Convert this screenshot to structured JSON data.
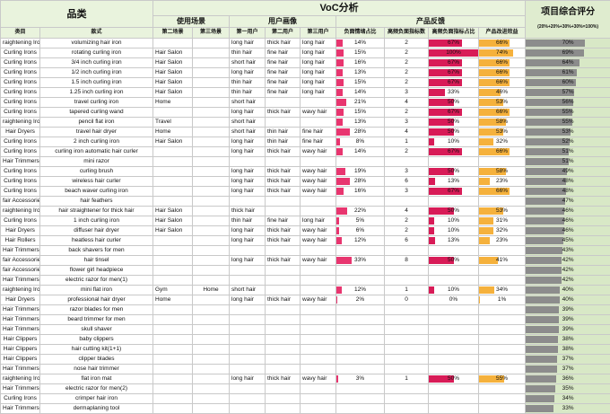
{
  "header": {
    "category": "品类",
    "voc": "VoC分析",
    "overall": "项目综合评分",
    "overall_sub": "(20%+20%+30%+30%=100%)",
    "usage": "使用场景",
    "persona": "用户画像",
    "feedback": "产品反馈",
    "col_category": "类目",
    "col_style": "款式",
    "col_scene2": "第二场景",
    "col_scene3": "第三场景",
    "col_user1": "第一用户",
    "col_user2": "第二用户",
    "col_user3": "第三用户",
    "col_neg": "负面情绪占比",
    "col_highneg": "高频负面指标数",
    "col_highneg_ratio": "高频负面指标占比",
    "col_improve": "产品改进效益"
  },
  "rows": [
    {
      "cat": "raightening Iro",
      "style": "volumizing hair iron",
      "s2": "",
      "s3": "",
      "u1": "long hair",
      "u2": "thick hair",
      "u3": "long hair",
      "neg": "14%",
      "negv": 0.14,
      "hn": "2",
      "hr": "67%",
      "hrv": 0.67,
      "imp": "66%",
      "impv": 0.66,
      "score": "70%",
      "sv": 0.7
    },
    {
      "cat": "Curling Irons",
      "style": "rotating curling iron",
      "s2": "Hair Salon",
      "s3": "",
      "u1": "thin hair",
      "u2": "fine hair",
      "u3": "long hair",
      "neg": "15%",
      "negv": 0.15,
      "hn": "2",
      "hr": "100%",
      "hrv": 1.0,
      "imp": "74%",
      "impv": 0.74,
      "score": "69%",
      "sv": 0.69
    },
    {
      "cat": "Curling Irons",
      "style": "3/4 inch curling iron",
      "s2": "Hair Salon",
      "s3": "",
      "u1": "short hair",
      "u2": "fine hair",
      "u3": "long hair",
      "neg": "16%",
      "negv": 0.16,
      "hn": "2",
      "hr": "67%",
      "hrv": 0.67,
      "imp": "66%",
      "impv": 0.66,
      "score": "64%",
      "sv": 0.64
    },
    {
      "cat": "Curling Irons",
      "style": "1/2 inch curling iron",
      "s2": "Hair Salon",
      "s3": "",
      "u1": "long hair",
      "u2": "fine hair",
      "u3": "long hair",
      "neg": "13%",
      "negv": 0.13,
      "hn": "2",
      "hr": "67%",
      "hrv": 0.67,
      "imp": "66%",
      "impv": 0.66,
      "score": "61%",
      "sv": 0.61
    },
    {
      "cat": "Curling Irons",
      "style": "1.5 inch curling iron",
      "s2": "Hair Salon",
      "s3": "",
      "u1": "thin hair",
      "u2": "fine hair",
      "u3": "long hair",
      "neg": "15%",
      "negv": 0.15,
      "hn": "2",
      "hr": "67%",
      "hrv": 0.67,
      "imp": "66%",
      "impv": 0.66,
      "score": "60%",
      "sv": 0.6
    },
    {
      "cat": "Curling Irons",
      "style": "1.25 inch curling iron",
      "s2": "Hair Salon",
      "s3": "",
      "u1": "thin hair",
      "u2": "fine hair",
      "u3": "long hair",
      "neg": "14%",
      "negv": 0.14,
      "hn": "3",
      "hr": "33%",
      "hrv": 0.33,
      "imp": "46%",
      "impv": 0.46,
      "score": "57%",
      "sv": 0.57
    },
    {
      "cat": "Curling Irons",
      "style": "travel curling iron",
      "s2": "Home",
      "s3": "",
      "u1": "short hair",
      "u2": "",
      "u3": "",
      "neg": "21%",
      "negv": 0.21,
      "hn": "4",
      "hr": "50%",
      "hrv": 0.5,
      "imp": "53%",
      "impv": 0.53,
      "score": "56%",
      "sv": 0.56
    },
    {
      "cat": "Curling Irons",
      "style": "tapered curling wand",
      "s2": "",
      "s3": "",
      "u1": "long hair",
      "u2": "thick hair",
      "u3": "wavy hair",
      "neg": "15%",
      "negv": 0.15,
      "hn": "2",
      "hr": "67%",
      "hrv": 0.67,
      "imp": "66%",
      "impv": 0.66,
      "score": "55%",
      "sv": 0.55
    },
    {
      "cat": "raightening Iro",
      "style": "pencil flat iron",
      "s2": "Travel",
      "s3": "",
      "u1": "short hair",
      "u2": "",
      "u3": "",
      "neg": "13%",
      "negv": 0.13,
      "hn": "3",
      "hr": "50%",
      "hrv": 0.5,
      "imp": "58%",
      "impv": 0.58,
      "score": "55%",
      "sv": 0.55
    },
    {
      "cat": "Hair Dryers",
      "style": "travel hair dryer",
      "s2": "Home",
      "s3": "",
      "u1": "short hair",
      "u2": "thin hair",
      "u3": "fine hair",
      "neg": "28%",
      "negv": 0.28,
      "hn": "4",
      "hr": "50%",
      "hrv": 0.5,
      "imp": "53%",
      "impv": 0.53,
      "score": "53%",
      "sv": 0.53
    },
    {
      "cat": "Curling Irons",
      "style": "2 inch curling iron",
      "s2": "Hair Salon",
      "s3": "",
      "u1": "long hair",
      "u2": "thin hair",
      "u3": "fine hair",
      "neg": "8%",
      "negv": 0.08,
      "hn": "1",
      "hr": "10%",
      "hrv": 0.1,
      "imp": "32%",
      "impv": 0.32,
      "score": "52%",
      "sv": 0.52
    },
    {
      "cat": "Curling Irons",
      "style": "curling iron automatic hair curler",
      "s2": "",
      "s3": "",
      "u1": "long hair",
      "u2": "thick hair",
      "u3": "wavy hair",
      "neg": "14%",
      "negv": 0.14,
      "hn": "2",
      "hr": "67%",
      "hrv": 0.67,
      "imp": "66%",
      "impv": 0.66,
      "score": "51%",
      "sv": 0.51
    },
    {
      "cat": "Hair Trimmers",
      "style": "mini razor",
      "s2": "",
      "s3": "",
      "u1": "",
      "u2": "",
      "u3": "",
      "neg": "",
      "negv": 0,
      "hn": "",
      "hr": "",
      "hrv": 0,
      "imp": "",
      "impv": 0,
      "score": "51%",
      "sv": 0.51
    },
    {
      "cat": "Curling Irons",
      "style": "curling brush",
      "s2": "",
      "s3": "",
      "u1": "long hair",
      "u2": "thick hair",
      "u3": "wavy hair",
      "neg": "19%",
      "negv": 0.19,
      "hn": "3",
      "hr": "50%",
      "hrv": 0.5,
      "imp": "58%",
      "impv": 0.58,
      "score": "49%",
      "sv": 0.49
    },
    {
      "cat": "Curling Irons",
      "style": "wireless hair curler",
      "s2": "",
      "s3": "",
      "u1": "long hair",
      "u2": "thick hair",
      "u3": "wavy hair",
      "neg": "28%",
      "negv": 0.28,
      "hn": "6",
      "hr": "13%",
      "hrv": 0.13,
      "imp": "23%",
      "impv": 0.23,
      "score": "48%",
      "sv": 0.48
    },
    {
      "cat": "Curling Irons",
      "style": "beach waver curling iron",
      "s2": "",
      "s3": "",
      "u1": "long hair",
      "u2": "thick hair",
      "u3": "wavy hair",
      "neg": "16%",
      "negv": 0.16,
      "hn": "3",
      "hr": "67%",
      "hrv": 0.67,
      "imp": "66%",
      "impv": 0.66,
      "score": "48%",
      "sv": 0.48
    },
    {
      "cat": "fair Accessorie",
      "style": "hair feathers",
      "s2": "",
      "s3": "",
      "u1": "",
      "u2": "",
      "u3": "",
      "neg": "",
      "negv": 0,
      "hn": "",
      "hr": "",
      "hrv": 0,
      "imp": "",
      "impv": 0,
      "score": "47%",
      "sv": 0.47
    },
    {
      "cat": "raightening Iro",
      "style": "hair straightener for thick hair",
      "s2": "Hair Salon",
      "s3": "",
      "u1": "thick hair",
      "u2": "",
      "u3": "",
      "neg": "22%",
      "negv": 0.22,
      "hn": "4",
      "hr": "50%",
      "hrv": 0.5,
      "imp": "53%",
      "impv": 0.53,
      "score": "46%",
      "sv": 0.46
    },
    {
      "cat": "Curling Irons",
      "style": "1 inch curling iron",
      "s2": "Hair Salon",
      "s3": "",
      "u1": "thin hair",
      "u2": "fine hair",
      "u3": "long hair",
      "neg": "5%",
      "negv": 0.05,
      "hn": "2",
      "hr": "10%",
      "hrv": 0.1,
      "imp": "31%",
      "impv": 0.31,
      "score": "46%",
      "sv": 0.46
    },
    {
      "cat": "Hair Dryers",
      "style": "diffuser hair dryer",
      "s2": "Hair Salon",
      "s3": "",
      "u1": "long hair",
      "u2": "thick hair",
      "u3": "wavy hair",
      "neg": "6%",
      "negv": 0.06,
      "hn": "2",
      "hr": "10%",
      "hrv": 0.1,
      "imp": "32%",
      "impv": 0.32,
      "score": "46%",
      "sv": 0.46
    },
    {
      "cat": "Hair Rollers",
      "style": "heatless hair curler",
      "s2": "",
      "s3": "",
      "u1": "long hair",
      "u2": "thick hair",
      "u3": "wavy hair",
      "neg": "12%",
      "negv": 0.12,
      "hn": "6",
      "hr": "13%",
      "hrv": 0.13,
      "imp": "23%",
      "impv": 0.23,
      "score": "45%",
      "sv": 0.45
    },
    {
      "cat": "Hair Trimmers",
      "style": "back shavers for men",
      "s2": "",
      "s3": "",
      "u1": "",
      "u2": "",
      "u3": "",
      "neg": "",
      "negv": 0,
      "hn": "",
      "hr": "",
      "hrv": 0,
      "imp": "",
      "impv": 0,
      "score": "43%",
      "sv": 0.43
    },
    {
      "cat": "fair Accessorie",
      "style": "hair tinsel",
      "s2": "",
      "s3": "",
      "u1": "long hair",
      "u2": "thick hair",
      "u3": "wavy hair",
      "neg": "33%",
      "negv": 0.33,
      "hn": "8",
      "hr": "50%",
      "hrv": 0.5,
      "imp": "41%",
      "impv": 0.41,
      "score": "42%",
      "sv": 0.42
    },
    {
      "cat": "fair Accessorie",
      "style": "flower girl headpiece",
      "s2": "",
      "s3": "",
      "u1": "",
      "u2": "",
      "u3": "",
      "neg": "",
      "negv": 0,
      "hn": "",
      "hr": "",
      "hrv": 0,
      "imp": "",
      "impv": 0,
      "score": "42%",
      "sv": 0.42
    },
    {
      "cat": "Hair Trimmers",
      "style": "electric razor for men(1)",
      "s2": "",
      "s3": "",
      "u1": "",
      "u2": "",
      "u3": "",
      "neg": "",
      "negv": 0,
      "hn": "",
      "hr": "",
      "hrv": 0,
      "imp": "",
      "impv": 0,
      "score": "42%",
      "sv": 0.42
    },
    {
      "cat": "raightening Iro",
      "style": "mini flat iron",
      "s2": "Gym",
      "s3": "Home",
      "u1": "short hair",
      "u2": "",
      "u3": "",
      "neg": "12%",
      "negv": 0.12,
      "hn": "1",
      "hr": "10%",
      "hrv": 0.1,
      "imp": "34%",
      "impv": 0.34,
      "score": "40%",
      "sv": 0.4
    },
    {
      "cat": "Hair Dryers",
      "style": "professional hair dryer",
      "s2": "Home",
      "s3": "",
      "u1": "long hair",
      "u2": "thick hair",
      "u3": "wavy hair",
      "neg": "2%",
      "negv": 0.02,
      "hn": "0",
      "hr": "0%",
      "hrv": 0,
      "imp": "1%",
      "impv": 0.01,
      "score": "40%",
      "sv": 0.4
    },
    {
      "cat": "Hair Trimmers",
      "style": "razor blades for men",
      "s2": "",
      "s3": "",
      "u1": "",
      "u2": "",
      "u3": "",
      "neg": "",
      "negv": 0,
      "hn": "",
      "hr": "",
      "hrv": 0,
      "imp": "",
      "impv": 0,
      "score": "39%",
      "sv": 0.39
    },
    {
      "cat": "Hair Trimmers",
      "style": "beard trimmer for men",
      "s2": "",
      "s3": "",
      "u1": "",
      "u2": "",
      "u3": "",
      "neg": "",
      "negv": 0,
      "hn": "",
      "hr": "",
      "hrv": 0,
      "imp": "",
      "impv": 0,
      "score": "39%",
      "sv": 0.39
    },
    {
      "cat": "Hair Trimmers",
      "style": "skull shaver",
      "s2": "",
      "s3": "",
      "u1": "",
      "u2": "",
      "u3": "",
      "neg": "",
      "negv": 0,
      "hn": "",
      "hr": "",
      "hrv": 0,
      "imp": "",
      "impv": 0,
      "score": "39%",
      "sv": 0.39
    },
    {
      "cat": "Hair Clippers",
      "style": "baby clippers",
      "s2": "",
      "s3": "",
      "u1": "",
      "u2": "",
      "u3": "",
      "neg": "",
      "negv": 0,
      "hn": "",
      "hr": "",
      "hrv": 0,
      "imp": "",
      "impv": 0,
      "score": "38%",
      "sv": 0.38
    },
    {
      "cat": "Hair Clippers",
      "style": "hair cutting kit(1+1)",
      "s2": "",
      "s3": "",
      "u1": "",
      "u2": "",
      "u3": "",
      "neg": "",
      "negv": 0,
      "hn": "",
      "hr": "",
      "hrv": 0,
      "imp": "",
      "impv": 0,
      "score": "38%",
      "sv": 0.38
    },
    {
      "cat": "Hair Clippers",
      "style": "clipper blades",
      "s2": "",
      "s3": "",
      "u1": "",
      "u2": "",
      "u3": "",
      "neg": "",
      "negv": 0,
      "hn": "",
      "hr": "",
      "hrv": 0,
      "imp": "",
      "impv": 0,
      "score": "37%",
      "sv": 0.37
    },
    {
      "cat": "Hair Trimmers",
      "style": "nose hair trimmer",
      "s2": "",
      "s3": "",
      "u1": "",
      "u2": "",
      "u3": "",
      "neg": "",
      "negv": 0,
      "hn": "",
      "hr": "",
      "hrv": 0,
      "imp": "",
      "impv": 0,
      "score": "37%",
      "sv": 0.37
    },
    {
      "cat": "raightening Iro",
      "style": "flat iron mat",
      "s2": "",
      "s3": "",
      "u1": "long hair",
      "u2": "thick hair",
      "u3": "wavy hair",
      "neg": "3%",
      "negv": 0.03,
      "hn": "1",
      "hr": "50%",
      "hrv": 0.5,
      "imp": "55%",
      "impv": 0.55,
      "score": "36%",
      "sv": 0.36
    },
    {
      "cat": "Hair Trimmers",
      "style": "electric razor for men(2)",
      "s2": "",
      "s3": "",
      "u1": "",
      "u2": "",
      "u3": "",
      "neg": "",
      "negv": 0,
      "hn": "",
      "hr": "",
      "hrv": 0,
      "imp": "",
      "impv": 0,
      "score": "35%",
      "sv": 0.35
    },
    {
      "cat": "Curling Irons",
      "style": "crimper hair iron",
      "s2": "",
      "s3": "",
      "u1": "",
      "u2": "",
      "u3": "",
      "neg": "",
      "negv": 0,
      "hn": "",
      "hr": "",
      "hrv": 0,
      "imp": "",
      "impv": 0,
      "score": "34%",
      "sv": 0.34
    },
    {
      "cat": "Hair Trimmers",
      "style": "dermaplaning tool",
      "s2": "",
      "s3": "",
      "u1": "",
      "u2": "",
      "u3": "",
      "neg": "",
      "negv": 0,
      "hn": "",
      "hr": "",
      "hrv": 0,
      "imp": "",
      "impv": 0,
      "score": "33%",
      "sv": 0.33
    }
  ]
}
